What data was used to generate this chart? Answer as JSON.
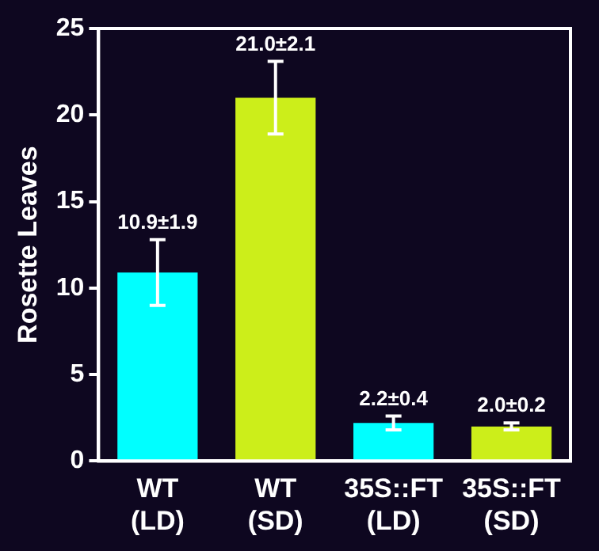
{
  "chart_data": {
    "type": "bar",
    "ylabel": "Rosette Leaves",
    "categories": [
      "WT\n(LD)",
      "WT\n(SD)",
      "35S::FT\n(LD)",
      "35S::FT\n(SD)"
    ],
    "values": [
      10.9,
      21.0,
      2.2,
      2.0
    ],
    "errors": [
      1.9,
      2.1,
      0.4,
      0.2
    ],
    "value_labels": [
      "10.9±1.9",
      "21.0±2.1",
      "2.2±0.4",
      "2.0±0.2"
    ],
    "colors": [
      "#00ffff",
      "#ccee1a",
      "#00ffff",
      "#ccee1a"
    ],
    "ylim": [
      0,
      25
    ],
    "yticks": [
      0,
      5,
      10,
      15,
      20,
      25
    ],
    "grid": false,
    "legend": false
  }
}
